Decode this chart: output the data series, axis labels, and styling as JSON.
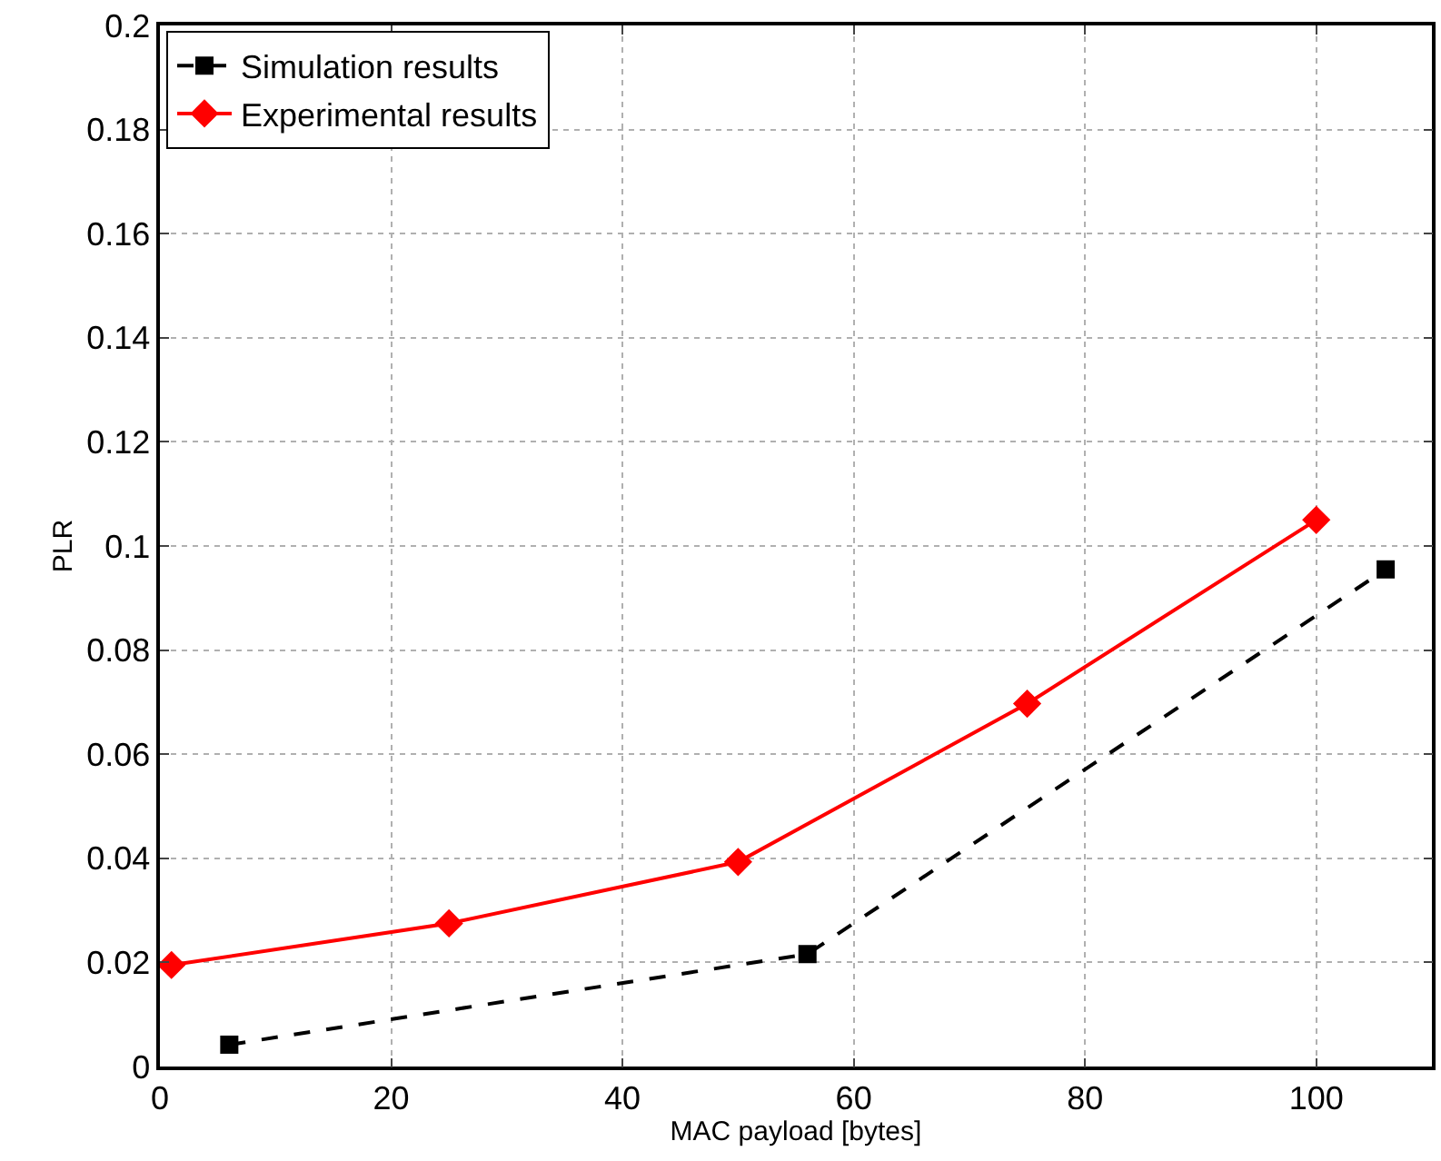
{
  "chart_data": {
    "type": "line",
    "xlabel": "MAC payload [bytes]",
    "ylabel": "PLR",
    "xlim": [
      0,
      110
    ],
    "xticks": [
      0,
      20,
      40,
      60,
      80,
      100
    ],
    "ylim": [
      0,
      0.2
    ],
    "yticks": [
      0,
      0.02,
      0.04,
      0.06,
      0.08,
      0.1,
      0.12,
      0.14,
      0.16,
      0.18,
      0.2
    ],
    "grid": true,
    "legend": "top left",
    "series": [
      {
        "name": "Simulation results",
        "color": "#000000",
        "x": [
          6,
          56,
          106
        ],
        "values": [
          0.0042,
          0.0216,
          0.0955
        ],
        "marker": "square",
        "line_style": "dashed"
      },
      {
        "name": "Experimental results",
        "color": "#ff0000",
        "x": [
          1,
          25,
          50,
          75,
          100
        ],
        "values": [
          0.0195,
          0.0275,
          0.0393,
          0.0697,
          0.105
        ],
        "marker": "diamond",
        "line_style": "solid"
      }
    ]
  }
}
